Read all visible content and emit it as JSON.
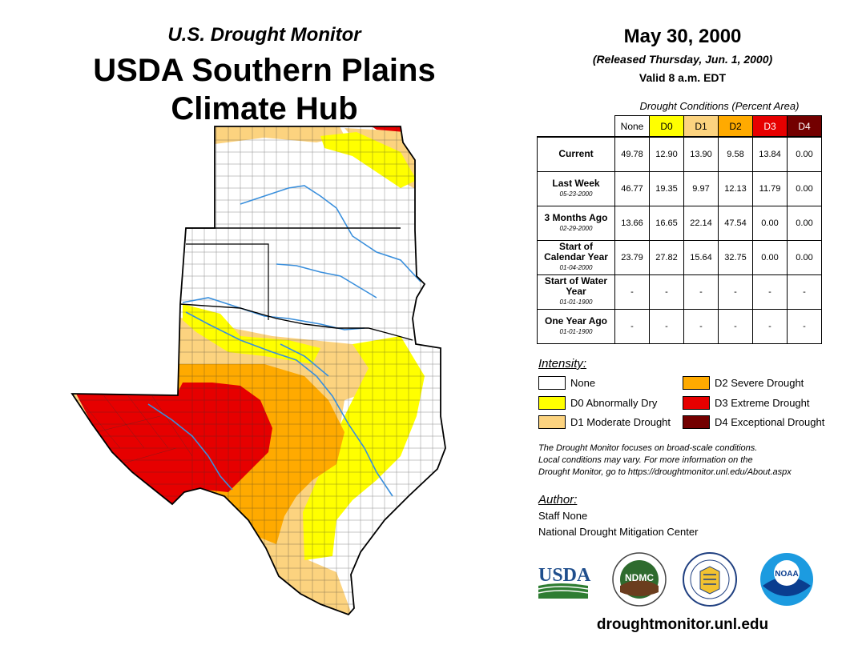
{
  "header": {
    "subtitle": "U.S. Drought Monitor",
    "title_line1": "USDA Southern Plains",
    "title_line2": "Climate Hub"
  },
  "info": {
    "date": "May 30, 2000",
    "released": "(Released Thursday, Jun. 1, 2000)",
    "valid": "Valid 8 a.m. EDT"
  },
  "table": {
    "caption": "Drought Conditions (Percent Area)",
    "columns": [
      {
        "label": "None",
        "color": "#ffffff",
        "text_color": "#000000"
      },
      {
        "label": "D0",
        "color": "#ffff00",
        "text_color": "#000000"
      },
      {
        "label": "D1",
        "color": "#fcd37f",
        "text_color": "#000000"
      },
      {
        "label": "D2",
        "color": "#ffaa00",
        "text_color": "#000000"
      },
      {
        "label": "D3",
        "color": "#e60000",
        "text_color": "#ffffff"
      },
      {
        "label": "D4",
        "color": "#730000",
        "text_color": "#ffffff"
      }
    ],
    "rows": [
      {
        "label": "Current",
        "date": "",
        "values": [
          "49.78",
          "12.90",
          "13.90",
          "9.58",
          "13.84",
          "0.00"
        ]
      },
      {
        "label": "Last Week",
        "date": "05-23-2000",
        "values": [
          "46.77",
          "19.35",
          "9.97",
          "12.13",
          "11.79",
          "0.00"
        ]
      },
      {
        "label": "3 Months Ago",
        "date": "02-29-2000",
        "values": [
          "13.66",
          "16.65",
          "22.14",
          "47.54",
          "0.00",
          "0.00"
        ]
      },
      {
        "label": "Start of Calendar Year",
        "date": "01-04-2000",
        "values": [
          "23.79",
          "27.82",
          "15.64",
          "32.75",
          "0.00",
          "0.00"
        ]
      },
      {
        "label": "Start of Water Year",
        "date": "01-01-1900",
        "values": [
          "-",
          "-",
          "-",
          "-",
          "-",
          "-"
        ]
      },
      {
        "label": "One Year Ago",
        "date": "01-01-1900",
        "values": [
          "-",
          "-",
          "-",
          "-",
          "-",
          "-"
        ]
      }
    ]
  },
  "legend": {
    "title": "Intensity:",
    "items": [
      {
        "label": "None",
        "color": "#ffffff"
      },
      {
        "label": "D0 Abnormally Dry",
        "color": "#ffff00"
      },
      {
        "label": "D1 Moderate Drought",
        "color": "#fcd37f"
      },
      {
        "label": "D2 Severe Drought",
        "color": "#ffaa00"
      },
      {
        "label": "D3 Extreme Drought",
        "color": "#e60000"
      },
      {
        "label": "D4 Exceptional Drought",
        "color": "#730000"
      }
    ]
  },
  "note": {
    "line1": "The Drought Monitor focuses on broad-scale conditions.",
    "line2": "Local conditions may vary. For more information on the",
    "line3": "Drought Monitor, go to https://droughtmonitor.unl.edu/About.aspx"
  },
  "author": {
    "title": "Author:",
    "name": "Staff None",
    "org": "National Drought Mitigation Center"
  },
  "logos": {
    "usda": "USDA",
    "ndmc": "NDMC",
    "noaa": "NOAA"
  },
  "footer": {
    "url": "droughtmonitor.unl.edu"
  }
}
